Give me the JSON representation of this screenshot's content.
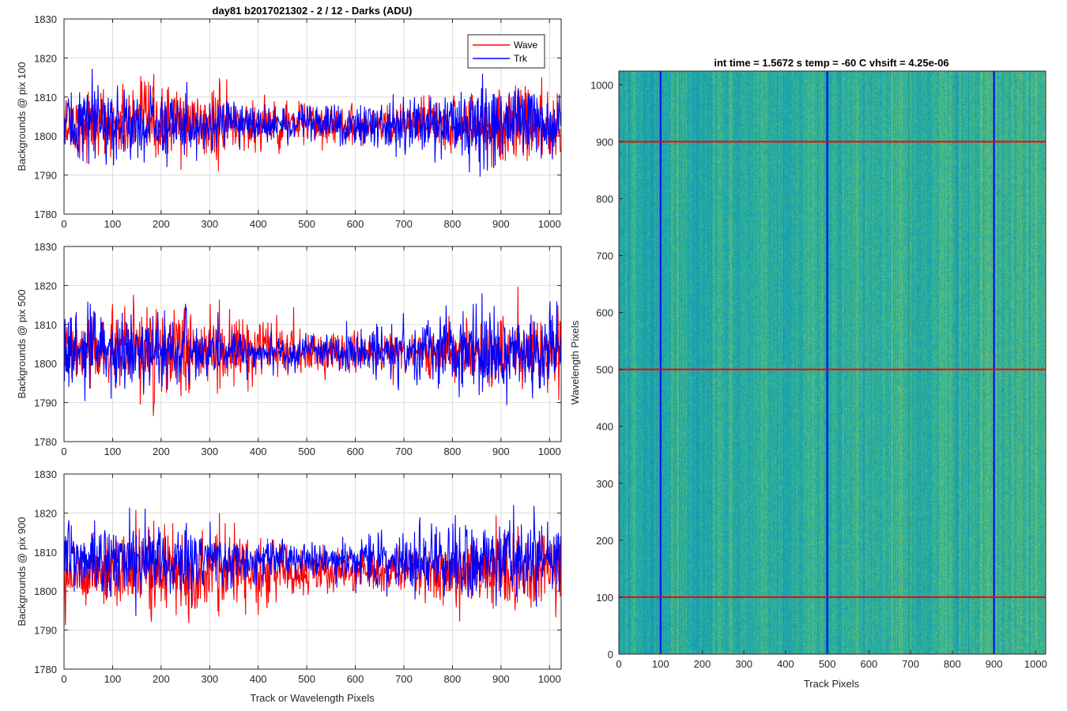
{
  "figure_title": "day81 b2017021302 - 2 / 12 - Darks (ADU)",
  "chart_data": [
    {
      "type": "line",
      "title": "day81 b2017021302 - 2 / 12 - Darks (ADU)",
      "xlabel": "",
      "ylabel": "Backgrounds @ pix 100",
      "xlim": [
        0,
        1024
      ],
      "ylim": [
        1780,
        1830
      ],
      "xticks": [
        "0",
        "100",
        "200",
        "300",
        "400",
        "500",
        "600",
        "700",
        "800",
        "900",
        "1000"
      ],
      "yticks": [
        "1780",
        "1790",
        "1800",
        "1810",
        "1820",
        "1830"
      ],
      "grid": true,
      "legend": {
        "position": "top-right",
        "entries": [
          "Wave",
          "Trk"
        ]
      },
      "series": [
        {
          "name": "Wave",
          "color": "#ff0000",
          "points": 1024,
          "mean": 1803,
          "std": 4.2,
          "min": 1787,
          "max": 1820,
          "note_values": [
            [
              0,
              1803
            ],
            [
              150,
              1805
            ],
            [
              300,
              1802
            ],
            [
              380,
              1800
            ],
            [
              450,
              1799
            ],
            [
              520,
              1806
            ],
            [
              600,
              1808
            ],
            [
              700,
              1807
            ],
            [
              800,
              1812
            ],
            [
              900,
              1806
            ],
            [
              1000,
              1805
            ]
          ]
        },
        {
          "name": "Trk",
          "color": "#0000ff",
          "points": 1024,
          "mean": 1803,
          "std": 4.0,
          "min": 1784,
          "max": 1819,
          "note_values": [
            [
              0,
              1804
            ],
            [
              150,
              1803
            ],
            [
              300,
              1801
            ],
            [
              380,
              1802
            ],
            [
              450,
              1803
            ],
            [
              520,
              1802
            ],
            [
              600,
              1802
            ],
            [
              700,
              1803
            ],
            [
              800,
              1803
            ],
            [
              900,
              1804
            ],
            [
              1000,
              1803
            ]
          ]
        }
      ]
    },
    {
      "type": "line",
      "title": "",
      "xlabel": "",
      "ylabel": "Backgrounds @ pix 500",
      "xlim": [
        0,
        1024
      ],
      "ylim": [
        1780,
        1830
      ],
      "xticks": [
        "0",
        "100",
        "200",
        "300",
        "400",
        "500",
        "600",
        "700",
        "800",
        "900",
        "1000"
      ],
      "yticks": [
        "1780",
        "1790",
        "1800",
        "1810",
        "1820",
        "1830"
      ],
      "grid": true,
      "series": [
        {
          "name": "Wave",
          "color": "#ff0000",
          "points": 1024,
          "mean": 1803,
          "std": 4.4,
          "min": 1782,
          "max": 1821
        },
        {
          "name": "Trk",
          "color": "#0000ff",
          "points": 1024,
          "mean": 1803,
          "std": 4.1,
          "min": 1784,
          "max": 1818
        }
      ]
    },
    {
      "type": "line",
      "title": "",
      "xlabel": "Track or Wavelength Pixels",
      "ylabel": "Backgrounds @ pix 900",
      "xlim": [
        0,
        1024
      ],
      "ylim": [
        1780,
        1830
      ],
      "xticks": [
        "0",
        "100",
        "200",
        "300",
        "400",
        "500",
        "600",
        "700",
        "800",
        "900",
        "1000"
      ],
      "yticks": [
        "1780",
        "1790",
        "1800",
        "1810",
        "1820",
        "1830"
      ],
      "grid": true,
      "series": [
        {
          "name": "Wave",
          "color": "#ff0000",
          "points": 1024,
          "mean": 1805,
          "std": 4.6,
          "min": 1783,
          "max": 1823
        },
        {
          "name": "Trk",
          "color": "#0000ff",
          "points": 1024,
          "mean": 1808,
          "std": 4.3,
          "min": 1789,
          "max": 1823
        }
      ]
    },
    {
      "type": "heatmap",
      "title": "int time = 1.5672 s    temp = -60 C    vhsift = 4.25e-06",
      "xlabel": "Track Pixels",
      "ylabel": "Wavelength Pixels",
      "xlim": [
        0,
        1024
      ],
      "ylim": [
        0,
        1024
      ],
      "xticks": [
        "0",
        "100",
        "200",
        "300",
        "400",
        "500",
        "600",
        "700",
        "800",
        "900",
        "1000"
      ],
      "yticks": [
        "0",
        "100",
        "200",
        "300",
        "400",
        "500",
        "600",
        "700",
        "800",
        "900",
        "1000"
      ],
      "colormap": "parula",
      "colors": {
        "low": "#1f8fae",
        "mid": "#2ab19a",
        "high": "#8dc555"
      },
      "vertical_lines": {
        "color": "#0000ff",
        "x": [
          100,
          500,
          900
        ]
      },
      "horizontal_lines": {
        "color": "#ff0000",
        "y": [
          100,
          500,
          900
        ]
      }
    }
  ]
}
